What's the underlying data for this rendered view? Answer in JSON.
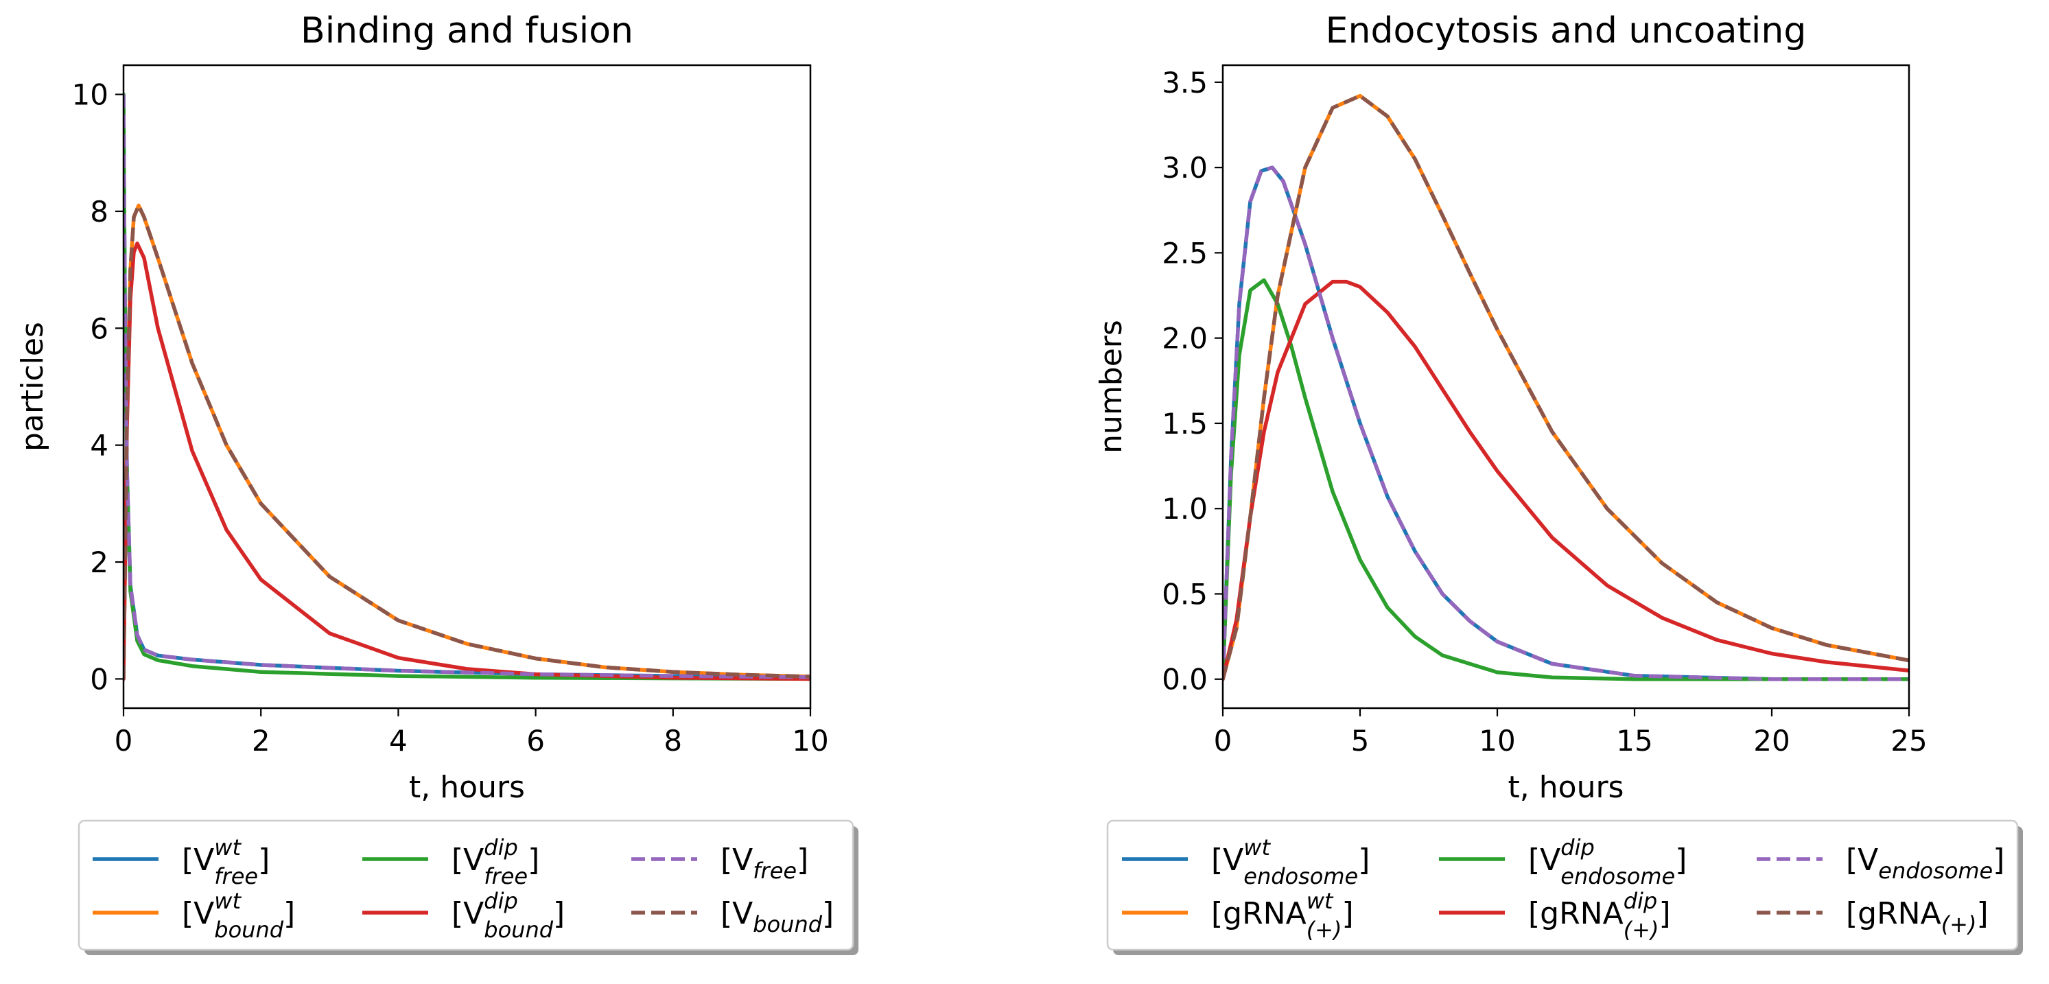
{
  "chart_data": [
    {
      "type": "line",
      "title": "Binding and fusion",
      "xlabel": "t, hours",
      "ylabel": "particles",
      "xlim": [
        0,
        10
      ],
      "ylim": [
        -0.5,
        10.5
      ],
      "xticks": [
        0,
        2,
        4,
        6,
        8,
        10
      ],
      "yticks": [
        0,
        2,
        4,
        6,
        8,
        10
      ],
      "xtick_labels": [
        "0",
        "2",
        "4",
        "6",
        "8",
        "10"
      ],
      "ytick_labels": [
        "0",
        "2",
        "4",
        "6",
        "8",
        "10"
      ],
      "grid": false,
      "legend_position": "bottom",
      "series": [
        {
          "key": "vwt_free",
          "label_base": "[V",
          "label_sup": "wt",
          "label_sub": "free",
          "label_end": "]",
          "color": "#1f77b4",
          "dashed": false,
          "x": [
            0,
            0.02,
            0.05,
            0.1,
            0.2,
            0.3,
            0.5,
            1,
            2,
            4,
            6,
            8,
            10
          ],
          "y": [
            10,
            6.5,
            3.6,
            1.6,
            0.75,
            0.5,
            0.4,
            0.33,
            0.24,
            0.14,
            0.08,
            0.05,
            0.03
          ]
        },
        {
          "key": "vwt_bound",
          "label_base": "[V",
          "label_sup": "wt",
          "label_sub": "bound",
          "label_end": "]",
          "color": "#ff7f0e",
          "dashed": false,
          "x": [
            0,
            0.05,
            0.1,
            0.15,
            0.22,
            0.3,
            0.5,
            1,
            1.5,
            2,
            3,
            4,
            5,
            6,
            7,
            8,
            9,
            10
          ],
          "y": [
            0,
            4.5,
            7.0,
            7.9,
            8.1,
            7.9,
            7.2,
            5.4,
            4.0,
            3.0,
            1.75,
            1.0,
            0.6,
            0.35,
            0.2,
            0.12,
            0.07,
            0.04
          ]
        },
        {
          "key": "vdip_free",
          "label_base": "[V",
          "label_sup": "dip",
          "label_sub": "free",
          "label_end": "]",
          "color": "#2ca02c",
          "dashed": false,
          "x": [
            0,
            0.02,
            0.05,
            0.1,
            0.2,
            0.3,
            0.5,
            1,
            2,
            4,
            6,
            8,
            10
          ],
          "y": [
            10,
            6.4,
            3.5,
            1.5,
            0.65,
            0.42,
            0.32,
            0.22,
            0.12,
            0.05,
            0.02,
            0.01,
            0.0
          ]
        },
        {
          "key": "vdip_bound",
          "label_base": "[V",
          "label_sup": "dip",
          "label_sub": "bound",
          "label_end": "]",
          "color": "#d62728",
          "dashed": false,
          "x": [
            0,
            0.05,
            0.1,
            0.15,
            0.2,
            0.3,
            0.5,
            1,
            1.5,
            2,
            3,
            4,
            5,
            6,
            8,
            10
          ],
          "y": [
            0,
            4.3,
            6.5,
            7.3,
            7.45,
            7.2,
            6.0,
            3.9,
            2.55,
            1.7,
            0.78,
            0.36,
            0.17,
            0.08,
            0.02,
            0.0
          ]
        },
        {
          "key": "v_free",
          "label_base": "[V",
          "label_sup": "",
          "label_sub": "free",
          "label_end": "]",
          "color": "#9467bd",
          "dashed": true,
          "x": [
            0,
            0.02,
            0.05,
            0.1,
            0.2,
            0.3,
            0.5,
            1,
            2,
            4,
            6,
            8,
            10
          ],
          "y": [
            10,
            6.5,
            3.6,
            1.6,
            0.75,
            0.5,
            0.4,
            0.33,
            0.24,
            0.14,
            0.08,
            0.05,
            0.03
          ]
        },
        {
          "key": "v_bound",
          "label_base": "[V",
          "label_sup": "",
          "label_sub": "bound",
          "label_end": "]",
          "color": "#8c564b",
          "dashed": true,
          "x": [
            0,
            0.05,
            0.1,
            0.15,
            0.22,
            0.3,
            0.5,
            1,
            1.5,
            2,
            3,
            4,
            5,
            6,
            7,
            8,
            9,
            10
          ],
          "y": [
            0,
            4.5,
            7.0,
            7.9,
            8.1,
            7.9,
            7.2,
            5.4,
            4.0,
            3.0,
            1.75,
            1.0,
            0.6,
            0.35,
            0.2,
            0.12,
            0.07,
            0.04
          ]
        }
      ]
    },
    {
      "type": "line",
      "title": "Endocytosis and uncoating",
      "xlabel": "t, hours",
      "ylabel": "numbers",
      "xlim": [
        0,
        25
      ],
      "ylim": [
        -0.17,
        3.6
      ],
      "xticks": [
        0,
        5,
        10,
        15,
        20,
        25
      ],
      "yticks": [
        0,
        0.5,
        1.0,
        1.5,
        2.0,
        2.5,
        3.0,
        3.5
      ],
      "xtick_labels": [
        "0",
        "5",
        "10",
        "15",
        "20",
        "25"
      ],
      "ytick_labels": [
        "0.0",
        "0.5",
        "1.0",
        "1.5",
        "2.0",
        "2.5",
        "3.0",
        "3.5"
      ],
      "grid": false,
      "legend_position": "bottom",
      "series": [
        {
          "key": "vwt_endo",
          "label_base": "[V",
          "label_sup": "wt",
          "label_sub": "endosome",
          "label_end": "]",
          "color": "#1f77b4",
          "dashed": false,
          "x": [
            0,
            0.3,
            0.6,
            1.0,
            1.4,
            1.8,
            2.2,
            3,
            4,
            5,
            6,
            7,
            8,
            9,
            10,
            12,
            15,
            20,
            25
          ],
          "y": [
            0,
            1.3,
            2.2,
            2.8,
            2.98,
            3.0,
            2.92,
            2.55,
            2.0,
            1.5,
            1.07,
            0.75,
            0.5,
            0.34,
            0.22,
            0.09,
            0.02,
            0.0,
            0.0
          ]
        },
        {
          "key": "grna_wt",
          "label_base": "[gRNA",
          "label_sup": "wt",
          "label_sub": "(+)",
          "label_end": "]",
          "color": "#ff7f0e",
          "dashed": false,
          "x": [
            0,
            0.5,
            1,
            1.5,
            2,
            3,
            4,
            5,
            6,
            7,
            8,
            9,
            10,
            12,
            14,
            16,
            18,
            20,
            22,
            25
          ],
          "y": [
            0,
            0.3,
            0.95,
            1.65,
            2.25,
            3.0,
            3.35,
            3.42,
            3.3,
            3.05,
            2.72,
            2.38,
            2.05,
            1.45,
            1.0,
            0.68,
            0.45,
            0.3,
            0.2,
            0.11
          ]
        },
        {
          "key": "vdip_endo",
          "label_base": "[V",
          "label_sup": "dip",
          "label_sub": "endosome",
          "label_end": "]",
          "color": "#2ca02c",
          "dashed": false,
          "x": [
            0,
            0.3,
            0.6,
            1.0,
            1.5,
            2.0,
            2.5,
            3,
            4,
            5,
            6,
            7,
            8,
            10,
            12,
            15,
            20,
            25
          ],
          "y": [
            0,
            1.2,
            1.9,
            2.28,
            2.34,
            2.2,
            1.95,
            1.65,
            1.1,
            0.7,
            0.42,
            0.25,
            0.14,
            0.04,
            0.01,
            0.0,
            0.0,
            0.0
          ]
        },
        {
          "key": "grna_dip",
          "label_base": "[gRNA",
          "label_sup": "dip",
          "label_sub": "(+)",
          "label_end": "]",
          "color": "#d62728",
          "dashed": false,
          "x": [
            0,
            0.5,
            1,
            1.5,
            2,
            3,
            4,
            4.5,
            5,
            6,
            7,
            8,
            9,
            10,
            12,
            14,
            16,
            18,
            20,
            22,
            25
          ],
          "y": [
            0,
            0.35,
            0.95,
            1.45,
            1.8,
            2.2,
            2.33,
            2.33,
            2.3,
            2.15,
            1.95,
            1.7,
            1.45,
            1.22,
            0.83,
            0.55,
            0.36,
            0.23,
            0.15,
            0.1,
            0.05
          ]
        },
        {
          "key": "v_endo",
          "label_base": "[V",
          "label_sup": "",
          "label_sub": "endosome",
          "label_end": "]",
          "color": "#9467bd",
          "dashed": true,
          "x": [
            0,
            0.3,
            0.6,
            1.0,
            1.4,
            1.8,
            2.2,
            3,
            4,
            5,
            6,
            7,
            8,
            9,
            10,
            12,
            15,
            20,
            25
          ],
          "y": [
            0,
            1.3,
            2.2,
            2.8,
            2.98,
            3.0,
            2.92,
            2.55,
            2.0,
            1.5,
            1.07,
            0.75,
            0.5,
            0.34,
            0.22,
            0.09,
            0.02,
            0.0,
            0.0
          ]
        },
        {
          "key": "grna_total",
          "label_base": "[gRNA",
          "label_sup": "",
          "label_sub": "(+)",
          "label_end": "]",
          "color": "#8c564b",
          "dashed": true,
          "x": [
            0,
            0.5,
            1,
            1.5,
            2,
            3,
            4,
            5,
            6,
            7,
            8,
            9,
            10,
            12,
            14,
            16,
            18,
            20,
            22,
            25
          ],
          "y": [
            0,
            0.3,
            0.95,
            1.65,
            2.25,
            3.0,
            3.35,
            3.42,
            3.3,
            3.05,
            2.72,
            2.38,
            2.05,
            1.45,
            1.0,
            0.68,
            0.45,
            0.3,
            0.2,
            0.11
          ]
        }
      ]
    }
  ]
}
